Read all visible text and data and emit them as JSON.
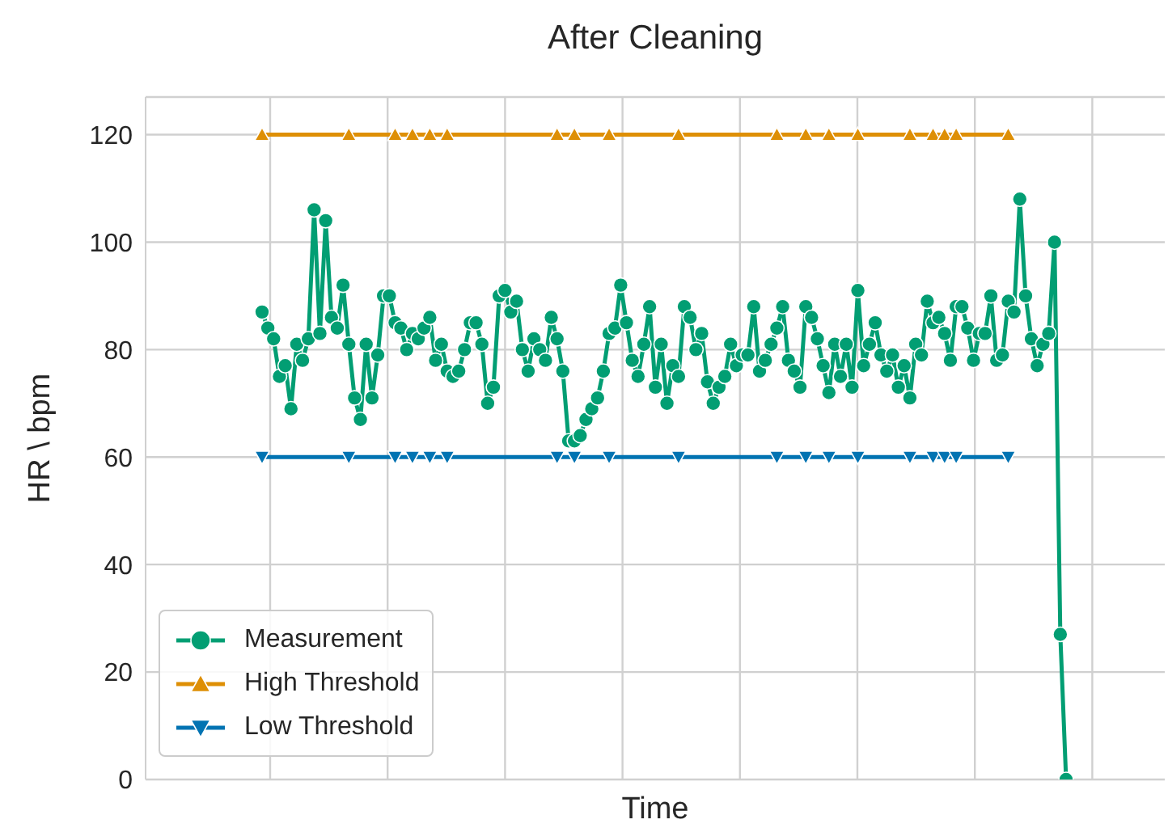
{
  "chart_data": {
    "type": "line",
    "title": "After Cleaning",
    "xlabel": "Time",
    "ylabel": "HR \\ bpm",
    "categories": [
      null,
      null,
      null,
      null,
      null,
      null,
      null,
      null,
      null,
      null,
      null,
      null,
      null,
      null,
      null,
      null,
      null,
      null,
      null,
      null,
      null,
      null,
      null,
      null,
      null,
      null,
      null,
      null,
      null,
      null,
      null,
      null,
      null,
      null,
      null,
      null,
      null,
      null,
      null,
      null,
      null,
      null,
      null,
      null,
      null,
      null,
      null,
      null,
      null,
      null,
      null,
      null,
      null,
      null,
      null,
      null,
      null,
      null,
      null,
      null,
      null,
      null,
      null,
      null,
      null,
      null,
      null,
      null,
      null,
      null,
      null,
      null,
      null,
      null,
      null,
      null,
      null,
      null,
      null,
      null,
      null,
      null,
      null,
      null,
      null,
      null,
      null,
      null,
      null,
      null,
      null,
      null,
      null,
      null,
      null,
      null,
      null,
      null,
      null,
      null,
      null,
      null,
      null,
      null,
      null,
      null,
      null,
      null,
      null,
      null,
      null,
      null,
      null,
      null,
      null,
      null,
      null,
      null,
      null,
      null,
      null,
      null,
      null,
      null,
      null,
      null,
      null,
      null,
      null,
      null,
      null,
      null,
      null,
      null,
      null,
      null,
      null,
      null,
      null,
      null
    ],
    "ylim": [
      0,
      127
    ],
    "yticks": [
      0,
      20,
      40,
      60,
      80,
      100,
      120
    ],
    "grid": true,
    "legend": "bottom left",
    "line_style": "solid",
    "series": [
      {
        "name": "Measurement",
        "color": "#029e73",
        "marker": "circle",
        "values": [
          87,
          84,
          82,
          75,
          77,
          69,
          81,
          78,
          82,
          106,
          83,
          104,
          86,
          84,
          92,
          81,
          71,
          67,
          81,
          71,
          79,
          90,
          90,
          85,
          84,
          80,
          83,
          82,
          84,
          86,
          78,
          81,
          76,
          75,
          76,
          80,
          85,
          85,
          81,
          70,
          73,
          90,
          91,
          87,
          89,
          80,
          76,
          82,
          80,
          78,
          86,
          82,
          76,
          63,
          63,
          64,
          67,
          69,
          71,
          76,
          83,
          84,
          92,
          85,
          78,
          75,
          81,
          88,
          73,
          81,
          70,
          77,
          75,
          88,
          86,
          80,
          83,
          74,
          70,
          73,
          75,
          81,
          77,
          79,
          79,
          88,
          76,
          78,
          81,
          84,
          88,
          78,
          76,
          73,
          88,
          86,
          82,
          77,
          72,
          81,
          75,
          81,
          73,
          91,
          77,
          81,
          85,
          79,
          76,
          79,
          73,
          77,
          71,
          81,
          79,
          89,
          85,
          86,
          83,
          78,
          88,
          88,
          84,
          78,
          83,
          83,
          90,
          78,
          79,
          89,
          87,
          108,
          90,
          82,
          77,
          81,
          83,
          100,
          27,
          0
        ]
      },
      {
        "name": "High Threshold",
        "color": "#de8f05",
        "marker": "triangle",
        "values": [
          120,
          null,
          null,
          null,
          null,
          null,
          null,
          null,
          null,
          null,
          null,
          null,
          null,
          null,
          null,
          120,
          null,
          null,
          null,
          null,
          null,
          null,
          null,
          120,
          null,
          null,
          120,
          null,
          null,
          120,
          null,
          null,
          120,
          null,
          null,
          null,
          null,
          null,
          null,
          null,
          null,
          null,
          null,
          null,
          null,
          null,
          null,
          null,
          null,
          null,
          null,
          120,
          null,
          null,
          120,
          null,
          null,
          null,
          null,
          null,
          120,
          null,
          null,
          null,
          null,
          null,
          null,
          null,
          null,
          null,
          null,
          null,
          120,
          null,
          null,
          null,
          null,
          null,
          null,
          null,
          null,
          null,
          null,
          null,
          null,
          null,
          null,
          null,
          null,
          120,
          null,
          null,
          null,
          null,
          120,
          null,
          null,
          null,
          120,
          null,
          null,
          null,
          null,
          120,
          null,
          null,
          null,
          null,
          null,
          null,
          null,
          null,
          120,
          null,
          null,
          null,
          120,
          null,
          120,
          null,
          120,
          null,
          null,
          null,
          null,
          null,
          null,
          null,
          null,
          120,
          null,
          null,
          null,
          null,
          null,
          null,
          null,
          null,
          null,
          null
        ]
      },
      {
        "name": "Low Threshold",
        "color": "#0173b2",
        "marker": "triangle_down",
        "values": [
          60,
          null,
          null,
          null,
          null,
          null,
          null,
          null,
          null,
          null,
          null,
          null,
          null,
          null,
          null,
          60,
          null,
          null,
          null,
          null,
          null,
          null,
          null,
          60,
          null,
          null,
          60,
          null,
          null,
          60,
          null,
          null,
          60,
          null,
          null,
          null,
          null,
          null,
          null,
          null,
          null,
          null,
          null,
          null,
          null,
          null,
          null,
          null,
          null,
          null,
          null,
          60,
          null,
          null,
          60,
          null,
          null,
          null,
          null,
          null,
          60,
          null,
          null,
          null,
          null,
          null,
          null,
          null,
          null,
          null,
          null,
          null,
          60,
          null,
          null,
          null,
          null,
          null,
          null,
          null,
          null,
          null,
          null,
          null,
          null,
          null,
          null,
          null,
          null,
          60,
          null,
          null,
          null,
          null,
          60,
          null,
          null,
          null,
          60,
          null,
          null,
          null,
          null,
          60,
          null,
          null,
          null,
          null,
          null,
          null,
          null,
          null,
          60,
          null,
          null,
          null,
          60,
          null,
          60,
          null,
          60,
          null,
          null,
          null,
          null,
          null,
          null,
          null,
          null,
          60,
          null,
          null,
          null,
          null,
          null,
          null,
          null,
          null,
          null,
          null
        ]
      }
    ]
  }
}
